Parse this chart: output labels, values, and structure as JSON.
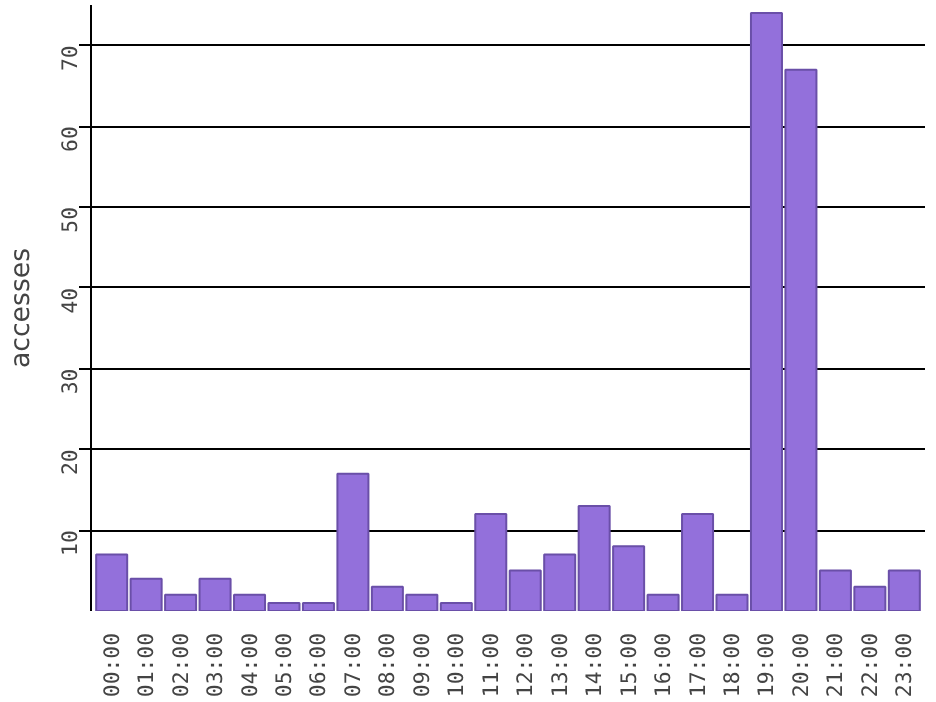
{
  "chart_data": {
    "type": "bar",
    "ylabel": "accesses",
    "categories": [
      "00:00",
      "01:00",
      "02:00",
      "03:00",
      "04:00",
      "05:00",
      "06:00",
      "07:00",
      "08:00",
      "09:00",
      "10:00",
      "11:00",
      "12:00",
      "13:00",
      "14:00",
      "15:00",
      "16:00",
      "17:00",
      "18:00",
      "19:00",
      "20:00",
      "21:00",
      "22:00",
      "23:00"
    ],
    "values": [
      7,
      4,
      2,
      4,
      2,
      1,
      1,
      17,
      3,
      2,
      1,
      12,
      5,
      7,
      13,
      8,
      2,
      12,
      2,
      74,
      67,
      5,
      3,
      5
    ],
    "color": "#9370db",
    "ylim": [
      0,
      75
    ],
    "yticks": [
      10,
      20,
      30,
      40,
      50,
      60,
      70
    ],
    "grid": "y"
  }
}
